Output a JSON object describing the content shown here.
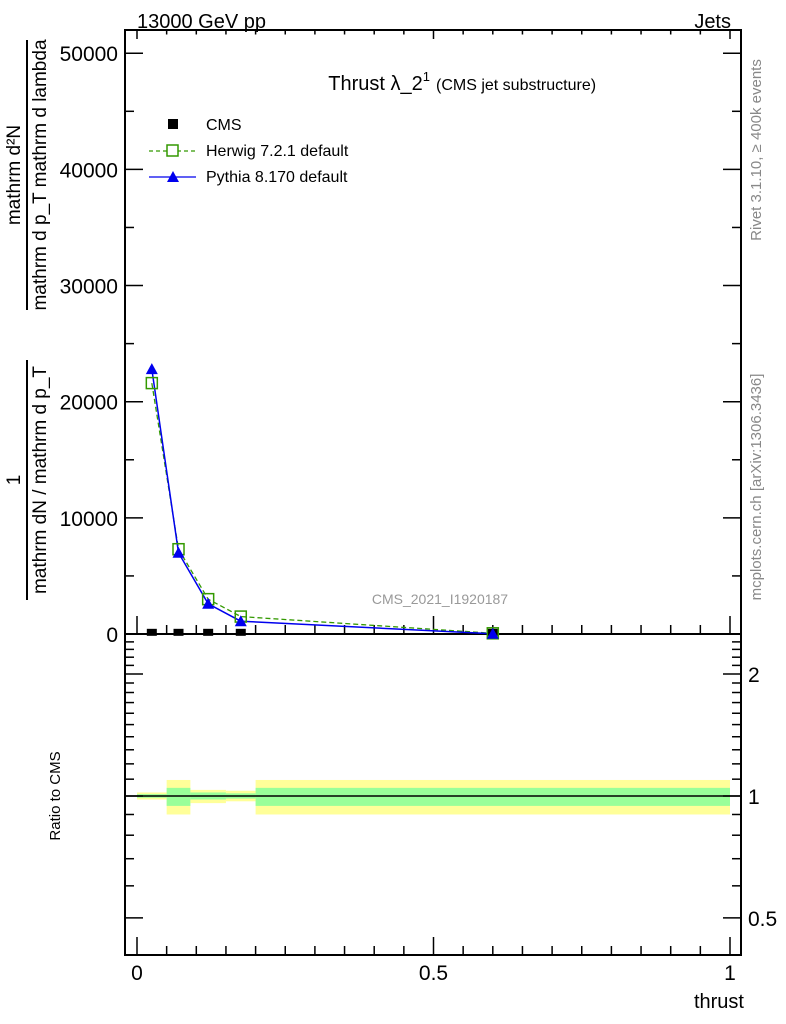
{
  "header": {
    "left": "13000 GeV pp",
    "right": "Jets"
  },
  "side": {
    "rivet": "Rivet 3.1.10, ≥ 400k events",
    "mcplots": "mcplots.cern.ch [arXiv:1306.3436]"
  },
  "watermark": "CMS_2021_I1920187",
  "chart_data": [
    {
      "type": "line",
      "title": "Thrust λ_2",
      "title_sup": "1",
      "subtitle": "(CMS jet substructure)",
      "ylabel_num1": "1",
      "ylabel_den1": "mathrm dN / mathrm d p_T",
      "ylabel_num2": "mathrm d²N",
      "ylabel_den2": "mathrm d p_T mathrm d lambda",
      "xlim": [
        0,
        1
      ],
      "ylim": [
        0,
        52000
      ],
      "yticks": [
        "0",
        "10000",
        "20000",
        "30000",
        "40000",
        "50000"
      ],
      "yticks_values": [
        0,
        10000,
        20000,
        30000,
        40000,
        50000
      ],
      "legend_position": "top-left",
      "bin_edges": [
        0,
        0.05,
        0.09,
        0.15,
        0.2,
        1
      ],
      "x": [
        0.025,
        0.07,
        0.12,
        0.175,
        0.6
      ],
      "series": [
        {
          "name": "CMS",
          "style": "black-square",
          "color": "#000000",
          "values": [
            15,
            15,
            15,
            15,
            15
          ]
        },
        {
          "name": "Herwig 7.2.1 default",
          "style": "green-open-square-dashed",
          "color": "#339900",
          "values": [
            21600,
            7300,
            3000,
            1500,
            60
          ]
        },
        {
          "name": "Pythia 8.170 default",
          "style": "blue-triangle-solid",
          "color": "#0000ee",
          "values": [
            22800,
            7000,
            2600,
            1100,
            20
          ]
        }
      ]
    },
    {
      "type": "area",
      "ylabel": "Ratio to CMS",
      "xlabel": "thrust",
      "xticks": [
        "0",
        "0.5",
        "1"
      ],
      "xticks_values": [
        0,
        0.5,
        1
      ],
      "yscale": "log",
      "ylim": [
        0.405,
        2.51
      ],
      "yticks": [
        "0.5",
        "1",
        "2"
      ],
      "yticks_values": [
        0.5,
        1,
        2
      ],
      "bin_edges": [
        0,
        0.05,
        0.09,
        0.15,
        0.2,
        1
      ],
      "band_outer": {
        "color": "#ffff99",
        "lo": [
          0.98,
          0.9,
          0.96,
          0.97,
          0.9
        ],
        "hi": [
          1.02,
          1.095,
          1.035,
          1.03,
          1.095
        ]
      },
      "band_inner": {
        "color": "#99ff99",
        "lo": [
          0.99,
          0.945,
          0.98,
          0.985,
          0.945
        ],
        "hi": [
          1.01,
          1.047,
          1.02,
          1.015,
          1.047
        ]
      }
    }
  ]
}
